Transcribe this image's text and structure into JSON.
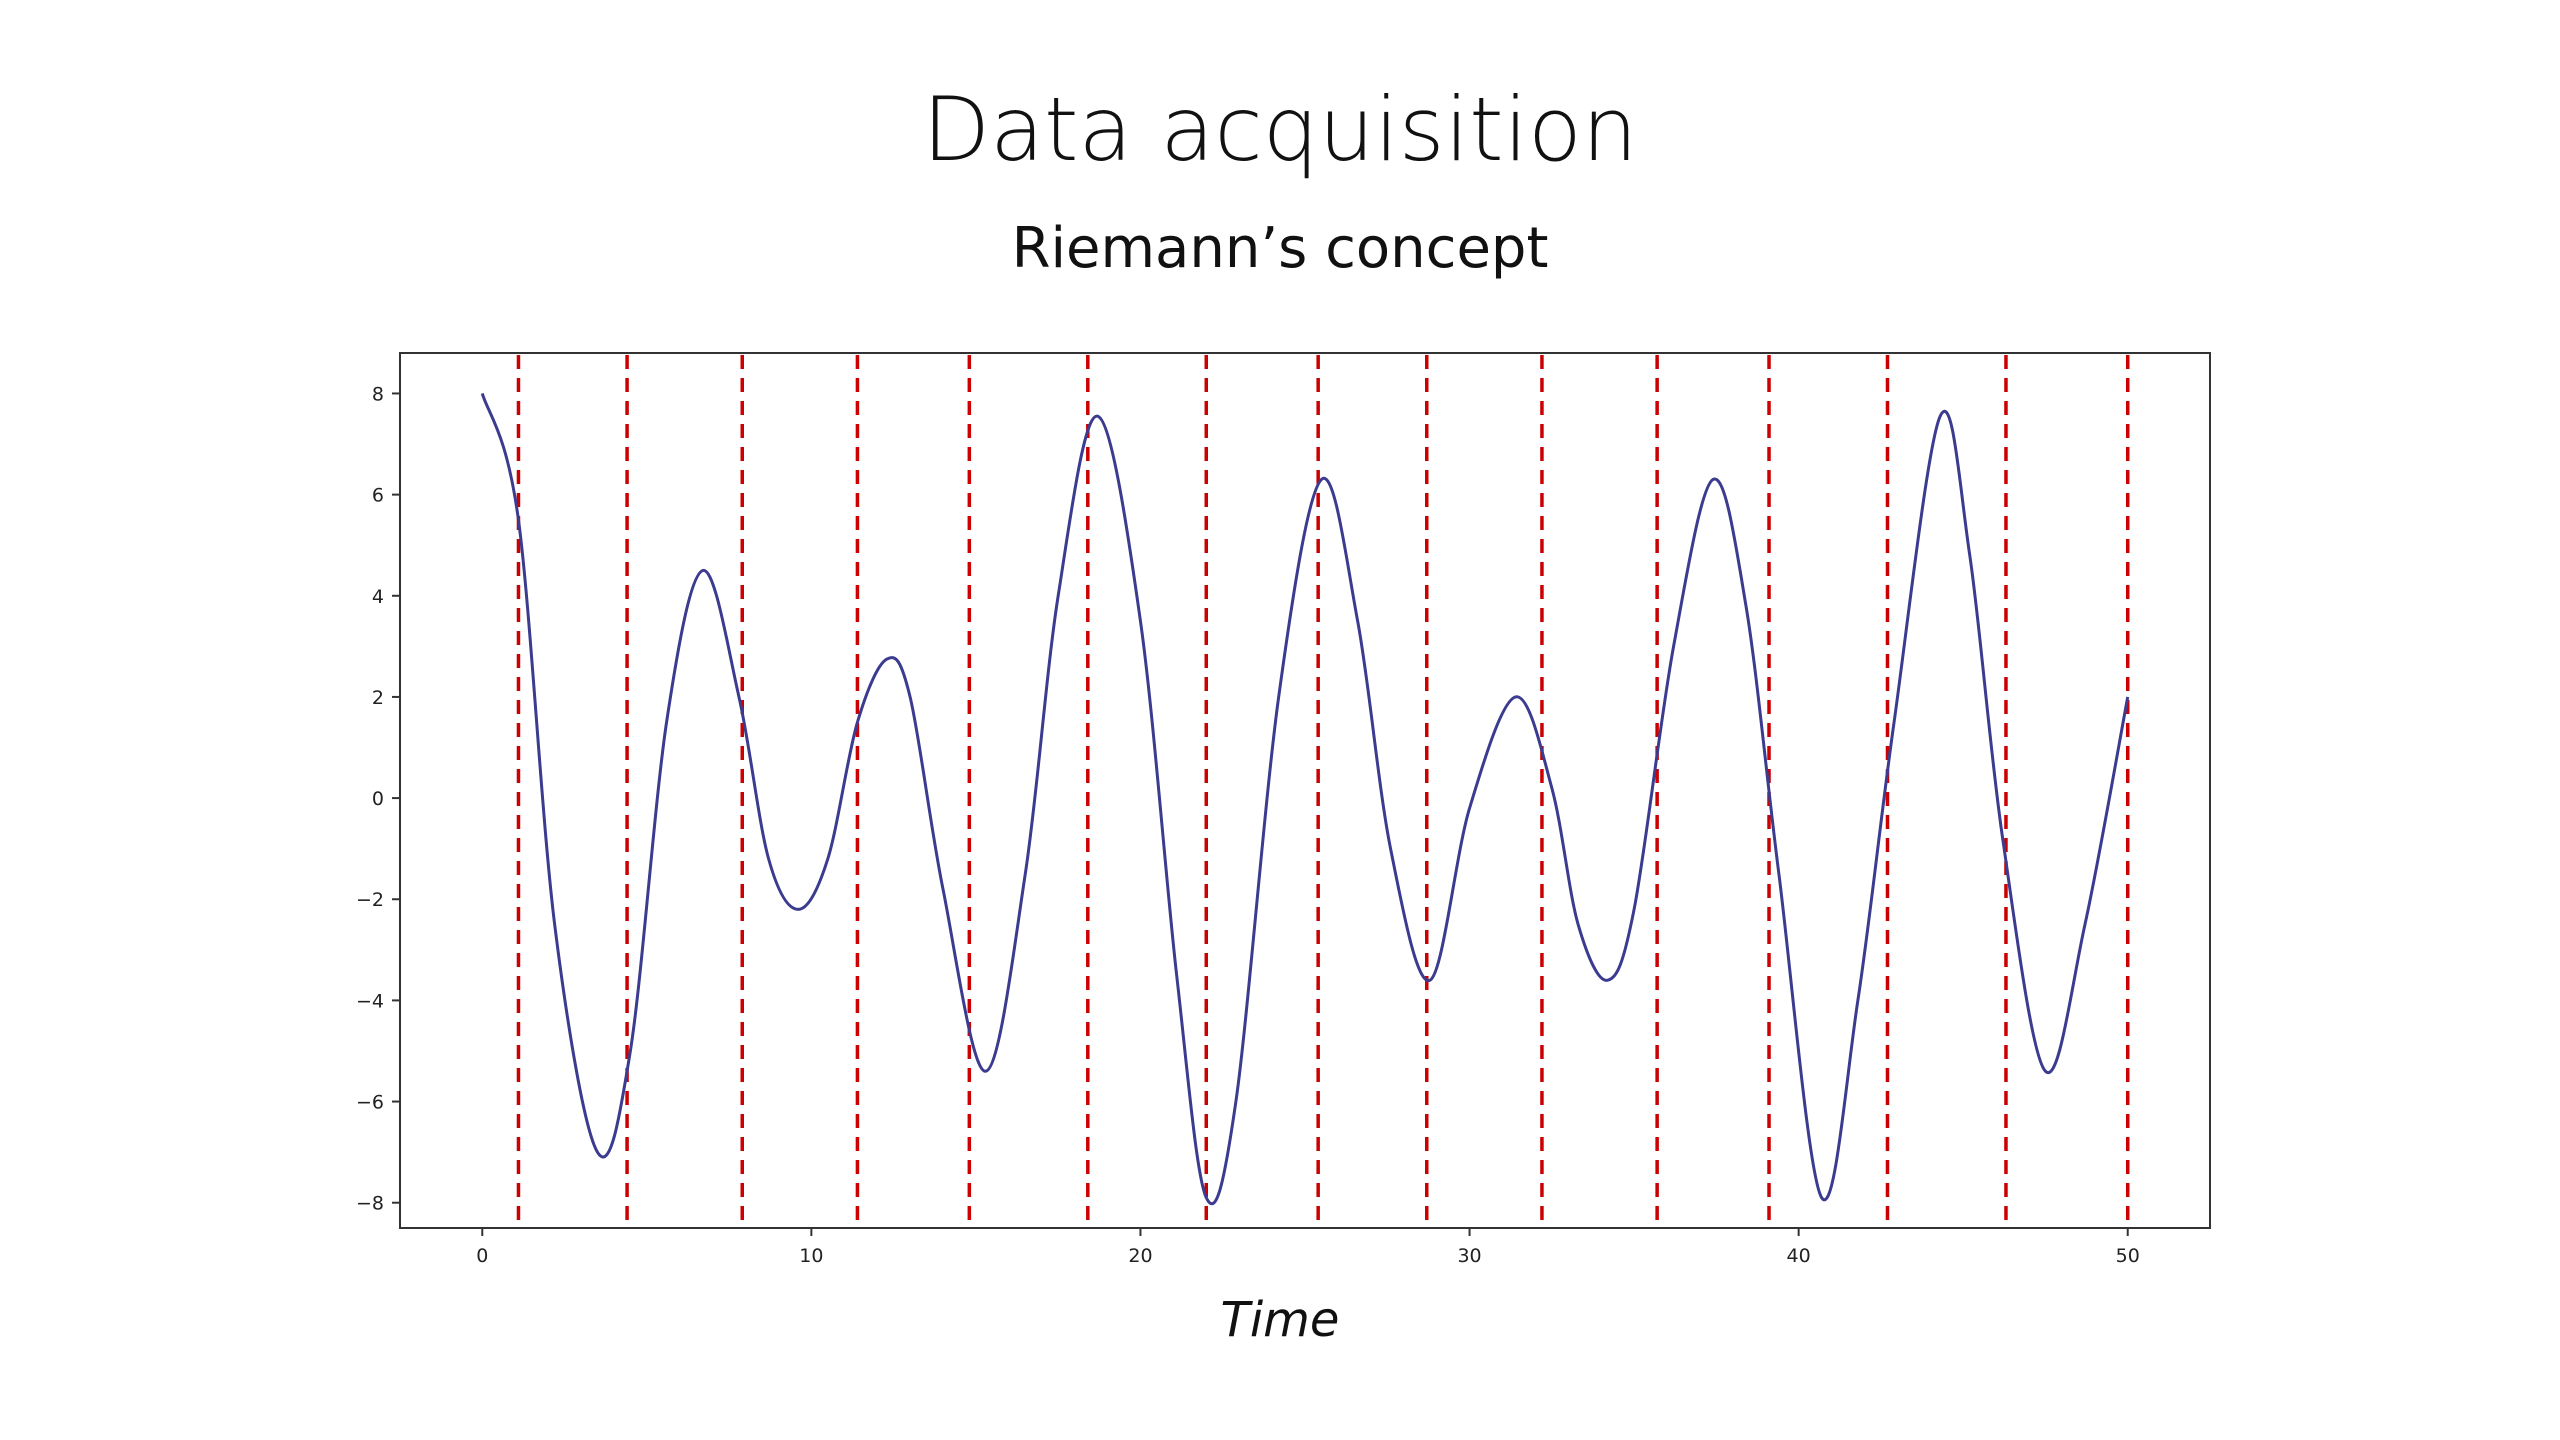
{
  "slide": {
    "title": "Data acquisition",
    "subtitle": "Riemann’s concept"
  },
  "chart_data": {
    "type": "line",
    "xlabel": "Time",
    "ylabel": "",
    "xlim": [
      -2.5,
      52.5
    ],
    "ylim": [
      -8.5,
      8.8
    ],
    "x_ticks": [
      0,
      10,
      20,
      30,
      40,
      50
    ],
    "y_ticks": [
      -8,
      -6,
      -4,
      -2,
      0,
      2,
      4,
      6,
      8
    ],
    "y_tick_labels": [
      "−8",
      "−6",
      "−4",
      "−2",
      "0",
      "2",
      "4",
      "6",
      "8"
    ],
    "grid": false,
    "series": [
      {
        "color": "#3b3b8f",
        "style": "solid",
        "points": [
          [
            0,
            8.0
          ],
          [
            1.1,
            5.5
          ],
          [
            2.2,
            -2.5
          ],
          [
            3.5,
            -7.0
          ],
          [
            4.5,
            -5.0
          ],
          [
            5.6,
            1.5
          ],
          [
            6.7,
            4.5
          ],
          [
            7.8,
            2.0
          ],
          [
            8.7,
            -1.2
          ],
          [
            9.6,
            -2.2
          ],
          [
            10.5,
            -1.2
          ],
          [
            11.4,
            1.5
          ],
          [
            12.3,
            2.75
          ],
          [
            13.0,
            2.0
          ],
          [
            14.0,
            -1.8
          ],
          [
            15.3,
            -5.4
          ],
          [
            16.5,
            -1.5
          ],
          [
            17.5,
            4.0
          ],
          [
            18.7,
            7.55
          ],
          [
            20.0,
            3.5
          ],
          [
            21.1,
            -3.5
          ],
          [
            22.0,
            -7.9
          ],
          [
            22.9,
            -6.0
          ],
          [
            24.2,
            2.0
          ],
          [
            25.5,
            6.3
          ],
          [
            26.6,
            3.5
          ],
          [
            27.6,
            -1.0
          ],
          [
            28.8,
            -3.6
          ],
          [
            30.0,
            -0.2
          ],
          [
            31.4,
            2.0
          ],
          [
            32.5,
            0.2
          ],
          [
            33.3,
            -2.5
          ],
          [
            34.2,
            -3.6
          ],
          [
            35.0,
            -2.2
          ],
          [
            36.2,
            3.0
          ],
          [
            37.4,
            6.3
          ],
          [
            38.4,
            3.8
          ],
          [
            39.4,
            -1.5
          ],
          [
            40.7,
            -7.9
          ],
          [
            41.8,
            -4.0
          ],
          [
            42.9,
            1.5
          ],
          [
            44.3,
            7.55
          ],
          [
            45.2,
            4.8
          ],
          [
            46.2,
            -0.8
          ],
          [
            47.5,
            -5.4
          ],
          [
            48.7,
            -2.5
          ],
          [
            50.0,
            2.0
          ]
        ]
      }
    ],
    "vlines": {
      "color": "#cc0000",
      "style": "dashed",
      "x": [
        1.1,
        4.4,
        7.9,
        11.4,
        14.8,
        18.4,
        22.0,
        25.4,
        28.7,
        32.2,
        35.7,
        39.1,
        42.7,
        46.3,
        50.0
      ]
    }
  }
}
